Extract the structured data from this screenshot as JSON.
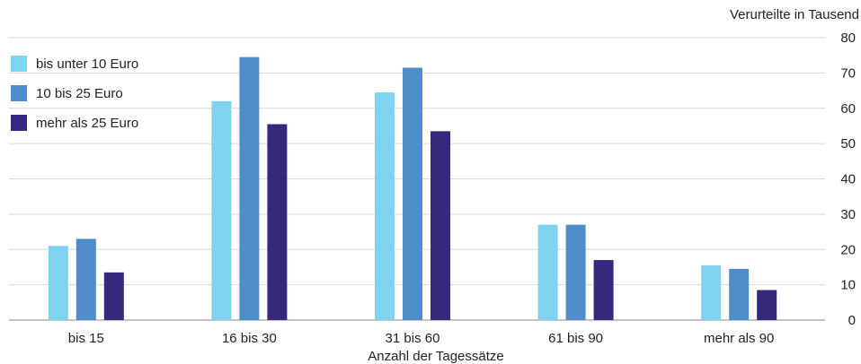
{
  "chart_data": {
    "type": "bar",
    "xlabel": "Anzahl der Tagessätze",
    "ylabel": "Verurteilte in Tausend",
    "categories": [
      "bis 15",
      "16 bis 30",
      "31 bis 60",
      "61 bis 90",
      "mehr als 90"
    ],
    "series": [
      {
        "name": "bis unter 10 Euro",
        "color": "#7fd3ee",
        "values": [
          21,
          62,
          64.5,
          27,
          15.5
        ]
      },
      {
        "name": "10 bis 25 Euro",
        "color": "#4f8cca",
        "values": [
          23,
          74.5,
          71.5,
          27,
          14.5
        ]
      },
      {
        "name": "mehr als 25 Euro",
        "color": "#34297a",
        "values": [
          13.5,
          55.5,
          53.5,
          17,
          8.5
        ]
      }
    ],
    "ylim": [
      0,
      80
    ],
    "yticks": [
      0,
      10,
      20,
      30,
      40,
      50,
      60,
      70,
      80
    ],
    "y_axis_side": "right",
    "grid": true,
    "legend_position": "top-left"
  }
}
